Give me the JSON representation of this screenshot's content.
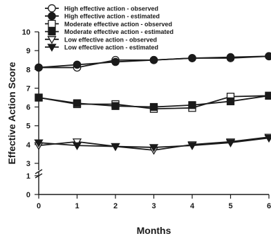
{
  "chart_data": {
    "type": "line",
    "xlabel": "Months",
    "ylabel": "Effective Action Score",
    "x": [
      0,
      1,
      2,
      3,
      4,
      5,
      6
    ],
    "xlim": [
      0,
      6
    ],
    "yticks": [
      0,
      1,
      3,
      4,
      5,
      6,
      7,
      8,
      9,
      10
    ],
    "axis_break": [
      1,
      3
    ],
    "grid": false,
    "legend_position": "top-left",
    "series": [
      {
        "name": "High effective action - observed",
        "marker": "circle-open",
        "values": [
          8.1,
          8.1,
          8.5,
          8.5,
          8.6,
          8.6,
          8.7
        ]
      },
      {
        "name": "High effective action - estimated",
        "marker": "circle-filled",
        "values": [
          8.1,
          8.25,
          8.4,
          8.5,
          8.6,
          8.65,
          8.7
        ]
      },
      {
        "name": "Moderate effective action - observed",
        "marker": "square-open",
        "values": [
          6.5,
          6.15,
          6.15,
          5.9,
          5.95,
          6.55,
          6.6
        ]
      },
      {
        "name": "Moderate effective action - estimated",
        "marker": "square-filled",
        "values": [
          6.5,
          6.2,
          6.05,
          6.0,
          6.1,
          6.3,
          6.6
        ]
      },
      {
        "name": "Low effective action - observed",
        "marker": "triangle-down-open",
        "values": [
          3.95,
          4.15,
          3.9,
          3.7,
          4.0,
          4.15,
          4.4
        ]
      },
      {
        "name": "Low effective action - estimated",
        "marker": "triangle-down-filled",
        "values": [
          4.1,
          3.95,
          3.9,
          3.85,
          3.95,
          4.1,
          4.35
        ]
      }
    ]
  }
}
